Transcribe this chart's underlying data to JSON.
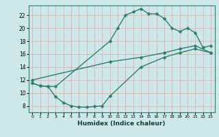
{
  "xlabel": "Humidex (Indice chaleur)",
  "bg_color": "#cde8e8",
  "line_color": "#2e7d6e",
  "grid_color": "#f0a0a0",
  "xlim": [
    -0.5,
    23.5
  ],
  "ylim": [
    7.0,
    23.5
  ],
  "yticks": [
    8,
    10,
    12,
    14,
    16,
    18,
    20,
    22
  ],
  "xticks": [
    0,
    1,
    2,
    3,
    4,
    5,
    6,
    7,
    8,
    9,
    10,
    11,
    12,
    13,
    14,
    15,
    16,
    17,
    18,
    19,
    20,
    21,
    22,
    23
  ],
  "curve1_x": [
    0,
    1,
    2,
    3,
    10,
    11,
    12,
    13,
    14,
    15,
    16,
    17,
    18,
    19,
    20,
    21,
    22,
    23
  ],
  "curve1_y": [
    11.5,
    11.1,
    11.0,
    11.0,
    18.0,
    20.0,
    22.0,
    22.5,
    23.0,
    22.2,
    22.2,
    21.5,
    20.0,
    19.5,
    20.0,
    19.3,
    17.0,
    17.3
  ],
  "curve2_x": [
    0,
    10,
    14,
    17,
    19,
    21,
    23
  ],
  "curve2_y": [
    12.0,
    14.8,
    15.5,
    16.2,
    16.8,
    17.3,
    16.2
  ],
  "curve3_x": [
    0,
    1,
    2,
    3,
    4,
    5,
    6,
    7,
    8,
    9,
    10,
    14,
    17,
    19,
    21,
    23
  ],
  "curve3_y": [
    11.5,
    11.1,
    11.0,
    9.4,
    8.5,
    8.0,
    7.8,
    7.8,
    7.9,
    8.0,
    9.5,
    14.0,
    15.5,
    16.2,
    16.8,
    16.2
  ],
  "marker_size": 2.5,
  "line_width": 1.0
}
